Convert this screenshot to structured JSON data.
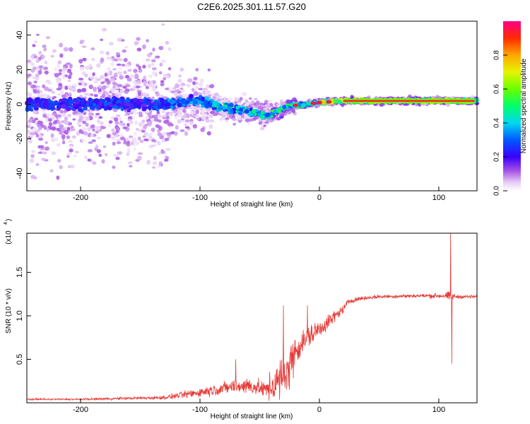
{
  "title": "C2E6.2025.301.11.57.G20",
  "chart_data": [
    {
      "type": "heatmap",
      "xlabel": "Height of straight line (km)",
      "ylabel": "Frequency (Hz)",
      "xlim": [
        -245,
        132
      ],
      "ylim": [
        -50,
        48
      ],
      "xticks": [
        -200,
        -100,
        0,
        100
      ],
      "yticks": [
        -40,
        -20,
        0,
        20,
        40
      ],
      "colorbar": {
        "label": "Normalized spectral amplitude",
        "range": [
          0,
          1
        ],
        "ticks": [
          "0.0",
          "0.2",
          "0.4",
          "0.6",
          "0.8"
        ],
        "tick_values": [
          0.0,
          0.2,
          0.4,
          0.6,
          0.8
        ]
      },
      "ridge": [
        [
          -245,
          0
        ],
        [
          -130,
          0
        ],
        [
          -100,
          2
        ],
        [
          -80,
          -2
        ],
        [
          -60,
          -4
        ],
        [
          -45,
          -6
        ],
        [
          -35,
          -4
        ],
        [
          -25,
          -1
        ],
        [
          -10,
          0
        ],
        [
          0,
          1
        ],
        [
          20,
          2
        ],
        [
          130,
          2
        ]
      ]
    },
    {
      "type": "line",
      "xlabel": "Height of straight line (km)",
      "ylabel": "SNR (10 * v/v)",
      "scale_label": "(x10",
      "scale_exp": "4",
      "xlim": [
        -245,
        132
      ],
      "ylim": [
        0,
        1.95
      ],
      "xticks": [
        -200,
        -100,
        0,
        100
      ],
      "yticks": [
        0.5,
        1.0,
        1.5
      ],
      "ytick_labels": [
        "0.5",
        "1.0",
        "1.5"
      ],
      "series": [
        {
          "name": "SNR",
          "color": "#e53935",
          "x": [
            -245,
            -200,
            -130,
            -100,
            -75,
            -60,
            -45,
            -38,
            -30,
            -25,
            -20,
            -10,
            0,
            10,
            20,
            25,
            35,
            50,
            80,
            105,
            110,
            115,
            132
          ],
          "y": [
            0.04,
            0.04,
            0.06,
            0.12,
            0.18,
            0.2,
            0.15,
            0.2,
            0.3,
            0.45,
            0.6,
            0.75,
            0.85,
            0.96,
            1.08,
            1.17,
            1.2,
            1.22,
            1.23,
            1.23,
            1.22,
            1.22,
            1.22
          ],
          "noise": [
            0.01,
            0.01,
            0.02,
            0.05,
            0.07,
            0.09,
            0.08,
            0.2,
            0.22,
            0.22,
            0.16,
            0.12,
            0.1,
            0.07,
            0.04,
            0.03,
            0.02,
            0.02,
            0.02,
            0.03,
            0.06,
            0.02,
            0.02
          ],
          "spikes": [
            [
              -70,
              0.5
            ],
            [
              -30,
              1.12
            ],
            [
              -25,
              0.15
            ],
            [
              -10,
              1.12
            ],
            [
              110,
              1.95
            ],
            [
              111,
              0.45
            ]
          ]
        }
      ]
    }
  ]
}
